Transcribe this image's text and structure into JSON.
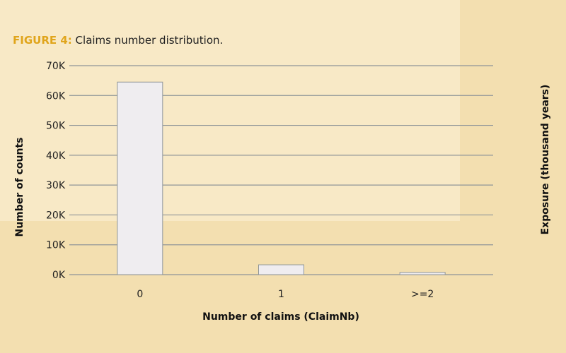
{
  "caption": {
    "figure_label": "FIGURE 4:",
    "text": " Claims number distribution."
  },
  "colors": {
    "background": "#f3dfb0",
    "panel": "#f8e9c6",
    "accent": "#e0a51c",
    "bar_fill": "#efedf0",
    "bar_stroke": "#8f9598",
    "grid": "#8f9598"
  },
  "chart_data": {
    "type": "bar",
    "categories": [
      "0",
      "1",
      ">=2"
    ],
    "values": [
      64500,
      3300,
      750
    ],
    "xlabel": "Number of claims (ClaimNb)",
    "ylabel": "Number of counts",
    "y2label": "Exposure (thousand years)",
    "ylim": [
      0,
      70000
    ],
    "yticks": [
      0,
      10000,
      20000,
      30000,
      40000,
      50000,
      60000,
      70000
    ],
    "ytick_labels": [
      "0K",
      "10K",
      "20K",
      "30K",
      "40K",
      "50K",
      "60K",
      "70K"
    ],
    "grid": true,
    "legend": "none"
  }
}
